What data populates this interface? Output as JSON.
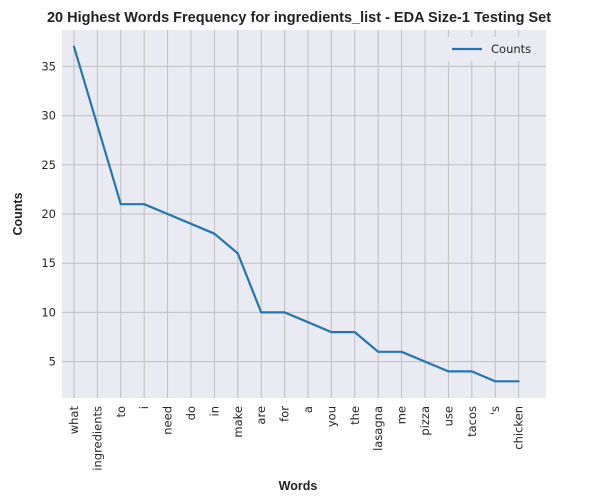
{
  "chart_data": {
    "type": "line",
    "title": "20 Highest Words Frequency for ingredients_list - EDA Size-1 Testing Set",
    "xlabel": "Words",
    "ylabel": "Counts",
    "categories": [
      "what",
      "ingredients",
      "to",
      "i",
      "need",
      "do",
      "in",
      "make",
      "are",
      "for",
      "a",
      "you",
      "the",
      "lasagna",
      "me",
      "pizza",
      "use",
      "tacos",
      "'s",
      "chicken"
    ],
    "series": [
      {
        "name": "Counts",
        "values": [
          37,
          29,
          21,
          21,
          20,
          19,
          18,
          16,
          10,
          10,
          9,
          8,
          8,
          6,
          6,
          5,
          4,
          4,
          3,
          3
        ]
      }
    ],
    "ylim": [
      1.3,
      38.7
    ],
    "yticks": [
      5,
      10,
      15,
      20,
      25,
      30,
      35
    ],
    "grid": true,
    "legend_position": "top-right",
    "colors": {
      "line": "#1f77b4",
      "plot_background": "#eaeaf2",
      "grid": "#c0c0c0"
    }
  }
}
